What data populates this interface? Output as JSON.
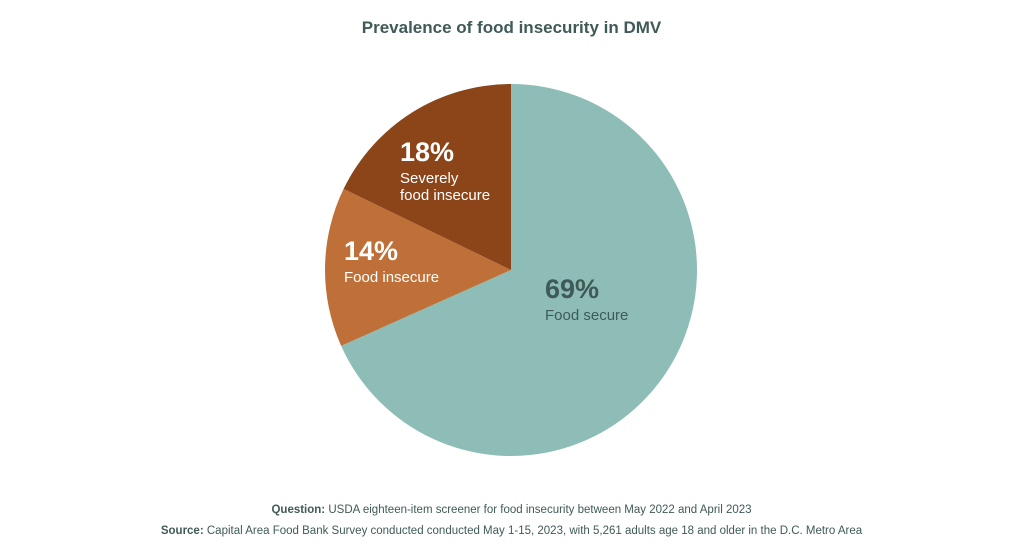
{
  "chart_data": {
    "type": "pie",
    "title": "Prevalence of food insecurity in DMV",
    "slices": [
      {
        "label": "Food secure",
        "value": 69,
        "value_label": "69%",
        "color": "#8dbdb6",
        "label_color": "#3f5a57"
      },
      {
        "label": "Food insecure",
        "value": 14,
        "value_label": "14%",
        "color": "#bf6f38",
        "label_color": "#ffffff"
      },
      {
        "label": "Severely food insecure",
        "value": 18,
        "value_label": "18%",
        "color": "#8c4519",
        "label_color": "#ffffff"
      }
    ]
  },
  "footnotes": {
    "question_label": "Question:",
    "question_text": "USDA eighteen-item screener for food insecurity between May 2022 and April 2023",
    "source_label": "Source:",
    "source_text": "Capital Area Food Bank Survey conducted conducted May 1-15, 2023, with 5,261 adults age 18 and older in the D.C. Metro Area"
  }
}
